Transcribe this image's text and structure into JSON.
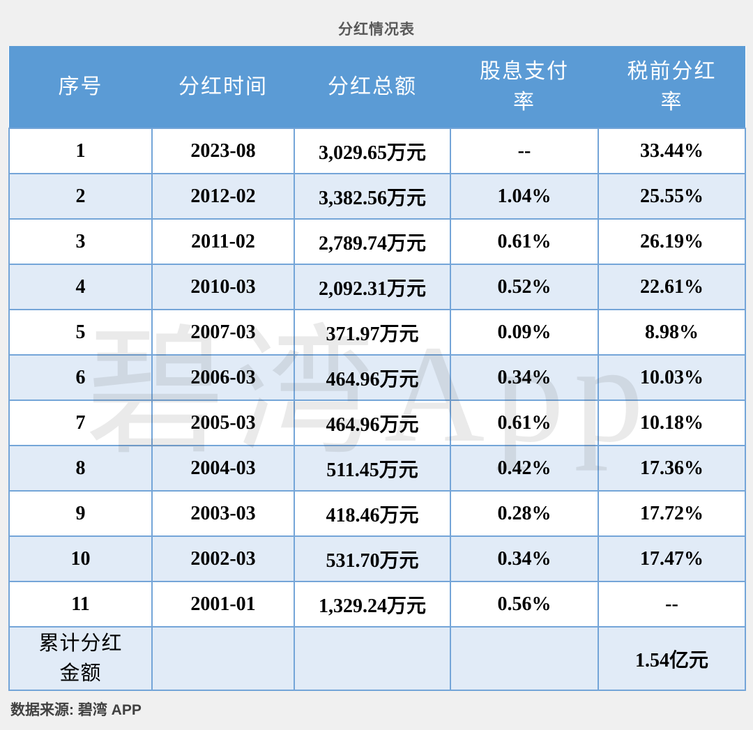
{
  "page": {
    "title": "分红情况表",
    "watermark": "碧湾App",
    "source_label": "数据来源: 碧湾 APP"
  },
  "colors": {
    "page_background": "#f0f0f0",
    "header_background": "#5b9bd5",
    "header_text": "#ffffff",
    "alt_row_background": "#e1ebf7",
    "row_background": "#ffffff",
    "grid_border": "#74a5d8",
    "body_text": "#000000",
    "title_text": "#595959"
  },
  "chart_data": {
    "type": "table",
    "title": "分红情况表",
    "columns": [
      "序号",
      "分红时间",
      "分红总额",
      "股息支付率",
      "税前分红率"
    ],
    "rows": [
      [
        "1",
        "2023-08",
        "3,029.65万元",
        "--",
        "33.44%"
      ],
      [
        "2",
        "2012-02",
        "3,382.56万元",
        "1.04%",
        "25.55%"
      ],
      [
        "3",
        "2011-02",
        "2,789.74万元",
        "0.61%",
        "26.19%"
      ],
      [
        "4",
        "2010-03",
        "2,092.31万元",
        "0.52%",
        "22.61%"
      ],
      [
        "5",
        "2007-03",
        "371.97万元",
        "0.09%",
        "8.98%"
      ],
      [
        "6",
        "2006-03",
        "464.96万元",
        "0.34%",
        "10.03%"
      ],
      [
        "7",
        "2005-03",
        "464.96万元",
        "0.61%",
        "10.18%"
      ],
      [
        "8",
        "2004-03",
        "511.45万元",
        "0.42%",
        "17.36%"
      ],
      [
        "9",
        "2003-03",
        "418.46万元",
        "0.28%",
        "17.72%"
      ],
      [
        "10",
        "2002-03",
        "531.70万元",
        "0.34%",
        "17.47%"
      ],
      [
        "11",
        "2001-01",
        "1,329.24万元",
        "0.56%",
        "--"
      ]
    ],
    "summary_row": {
      "label": "累计分红金额",
      "cells": [
        "",
        "",
        ""
      ],
      "value": "1.54亿元"
    },
    "source": "数据来源: 碧湾 APP"
  }
}
